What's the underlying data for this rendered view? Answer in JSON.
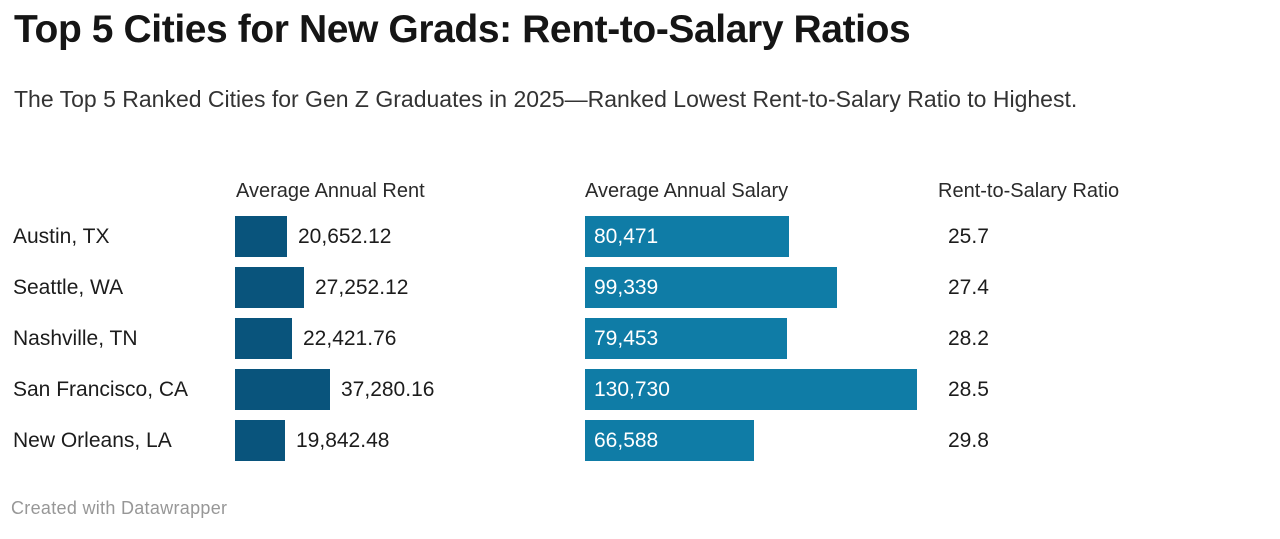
{
  "chart_data": {
    "type": "bar",
    "title": "Top 5 Cities for New Grads: Rent-to-Salary Ratios",
    "subtitle": "The Top 5 Ranked Cities for Gen Z Graduates in 2025—Ranked Lowest Rent-to-Salary Ratio to Highest.",
    "columns": [
      "Average Annual Rent",
      "Average Annual Salary",
      "Rent-to-Salary Ratio"
    ],
    "rows": [
      {
        "city": "Austin, TX",
        "rent": 20652.12,
        "rent_label": "20,652.12",
        "salary": 80471,
        "salary_label": "80,471",
        "ratio": 25.7,
        "ratio_label": "25.7"
      },
      {
        "city": "Seattle, WA",
        "rent": 27252.12,
        "rent_label": "27,252.12",
        "salary": 99339,
        "salary_label": "99,339",
        "ratio": 27.4,
        "ratio_label": "27.4"
      },
      {
        "city": "Nashville, TN",
        "rent": 22421.76,
        "rent_label": "22,421.76",
        "salary": 79453,
        "salary_label": "79,453",
        "ratio": 28.2,
        "ratio_label": "28.2"
      },
      {
        "city": "San Francisco, CA",
        "rent": 37280.16,
        "rent_label": "37,280.16",
        "salary": 130730,
        "salary_label": "130,730",
        "ratio": 28.5,
        "ratio_label": "28.5"
      },
      {
        "city": "New Orleans, LA",
        "rent": 19842.48,
        "rent_label": "19,842.48",
        "salary": 66588,
        "salary_label": "66,588",
        "ratio": 29.8,
        "ratio_label": "29.8"
      }
    ],
    "colors": {
      "rent_bar": "#09547c",
      "salary_bar": "#0f7ca6",
      "salary_label_text": "#ffffff"
    },
    "grid": false,
    "legend_position": "none",
    "value_axis_hidden": true
  },
  "footer": {
    "credit": "Created with Datawrapper"
  }
}
